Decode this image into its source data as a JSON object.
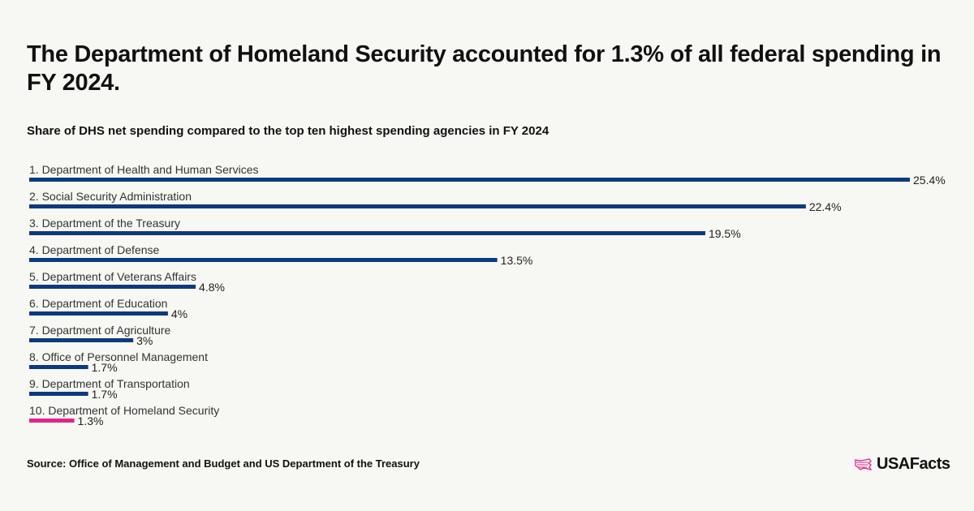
{
  "title": "The Department of Homeland Security accounted for 1.3% of all federal spending in FY 2024.",
  "subtitle": "Share of DHS net spending compared to the top ten highest spending agencies in FY 2024",
  "source": "Source: Office of Management and Budget and US Department of the Treasury",
  "logo": "USAFacts",
  "colors": {
    "default": "#0b3a7e",
    "highlight": "#e0248a",
    "background": "#f7f7f3"
  },
  "chart_data": {
    "type": "bar",
    "orientation": "horizontal",
    "categories": [
      "1. Department of Health and Human Services",
      "2. Social Security Administration",
      "3. Department of the Treasury",
      "4. Department of Defense",
      "5. Department of Veterans Affairs",
      "6. Department of Education",
      "7. Department of Agriculture",
      "8. Office of Personnel Management",
      "9. Department of Transportation",
      "10. Department of Homeland Security"
    ],
    "values": [
      25.4,
      22.4,
      19.5,
      13.5,
      4.8,
      4,
      3,
      1.7,
      1.7,
      1.3
    ],
    "value_labels": [
      "25.4%",
      "22.4%",
      "19.5%",
      "13.5%",
      "4.8%",
      "4%",
      "3%",
      "1.7%",
      "1.7%",
      "1.3%"
    ],
    "highlight_index": 9,
    "unit": "%"
  }
}
